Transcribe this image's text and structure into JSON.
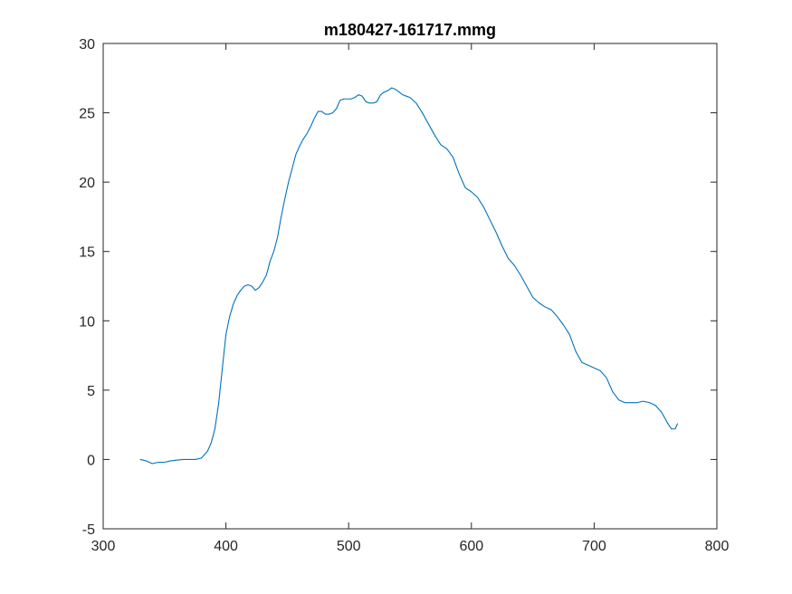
{
  "chart_data": {
    "type": "line",
    "title": "m180427-161717.mmg",
    "xlabel": "",
    "ylabel": "",
    "xlim": [
      300,
      800
    ],
    "ylim": [
      -5,
      30
    ],
    "xticks": [
      300,
      400,
      500,
      600,
      700,
      800
    ],
    "yticks": [
      -5,
      0,
      5,
      10,
      15,
      20,
      25,
      30
    ],
    "grid": false,
    "series_color": "#0072BD",
    "series": [
      {
        "x": [
          330,
          335,
          340,
          345,
          350,
          355,
          360,
          365,
          370,
          375,
          380,
          385,
          388,
          391,
          394,
          397,
          400,
          403,
          406,
          409,
          412,
          415,
          418,
          421,
          424,
          427,
          430,
          433,
          436,
          439,
          442,
          445,
          448,
          451,
          454,
          457,
          460,
          463,
          466,
          469,
          472,
          475,
          478,
          481,
          484,
          487,
          490,
          493,
          496,
          499,
          502,
          505,
          508,
          511,
          514,
          517,
          520,
          523,
          526,
          529,
          532,
          535,
          538,
          541,
          544,
          547,
          550,
          555,
          560,
          565,
          570,
          575,
          580,
          585,
          590,
          595,
          600,
          605,
          610,
          615,
          620,
          625,
          630,
          635,
          640,
          645,
          650,
          655,
          660,
          665,
          670,
          675,
          680,
          685,
          690,
          695,
          700,
          705,
          710,
          715,
          720,
          725,
          730,
          735,
          740,
          745,
          750,
          755,
          760,
          763,
          766,
          768
        ],
        "y": [
          0.0,
          -0.1,
          -0.3,
          -0.2,
          -0.2,
          -0.1,
          -0.05,
          0.0,
          0.0,
          0.0,
          0.1,
          0.6,
          1.2,
          2.2,
          4.0,
          6.5,
          9.0,
          10.3,
          11.2,
          11.8,
          12.2,
          12.5,
          12.6,
          12.5,
          12.2,
          12.4,
          12.8,
          13.3,
          14.3,
          15.0,
          16.0,
          17.5,
          18.8,
          20.0,
          21.0,
          22.0,
          22.6,
          23.1,
          23.5,
          24.0,
          24.6,
          25.1,
          25.1,
          24.9,
          24.9,
          25.0,
          25.3,
          25.9,
          26.0,
          26.0,
          26.0,
          26.1,
          26.3,
          26.2,
          25.8,
          25.7,
          25.7,
          25.8,
          26.3,
          26.5,
          26.6,
          26.8,
          26.7,
          26.5,
          26.3,
          26.2,
          26.1,
          25.7,
          25.0,
          24.2,
          23.4,
          22.7,
          22.4,
          21.8,
          20.6,
          19.6,
          19.3,
          18.9,
          18.2,
          17.3,
          16.4,
          15.4,
          14.5,
          14.0,
          13.3,
          12.5,
          11.7,
          11.3,
          11.0,
          10.8,
          10.3,
          9.7,
          9.0,
          7.8,
          7.0,
          6.8,
          6.6,
          6.4,
          5.9,
          4.9,
          4.3,
          4.1,
          4.1,
          4.1,
          4.2,
          4.1,
          3.9,
          3.4,
          2.6,
          2.2,
          2.2,
          2.6
        ]
      }
    ]
  }
}
